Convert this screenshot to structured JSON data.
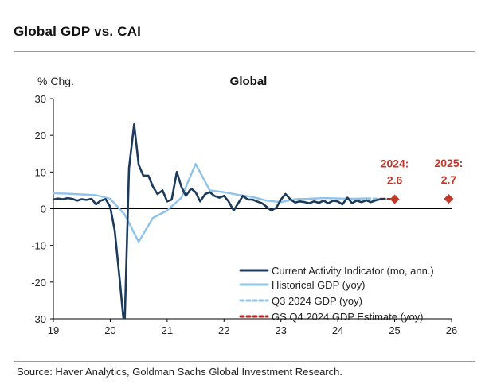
{
  "page": {
    "title": "Global GDP vs. CAI",
    "source": "Source: Haver Analytics, Goldman Sachs Global Investment Research."
  },
  "colors": {
    "cai": "#1b3a5c",
    "historical": "#8ec3ea",
    "q3": "#8ec3ea",
    "q4": "#b22222",
    "estimate": "#c0392b",
    "zero_line": "#000000"
  },
  "chart_data": {
    "type": "line",
    "title": "Global",
    "ylabel": "% Chg.",
    "ylim": [
      -30,
      30
    ],
    "yticks": [
      30,
      20,
      10,
      0,
      -10,
      -20,
      -30
    ],
    "xlim": [
      19,
      26
    ],
    "xticks": [
      "19",
      "20",
      "21",
      "22",
      "23",
      "24",
      "25",
      "26"
    ],
    "grid": false,
    "legend_position": "bottom-right",
    "series": [
      {
        "name": "Current Activity Indicator (mo, ann.)",
        "style": "solid-thick",
        "color": "#1b3a5c",
        "x": [
          19.0,
          19.08,
          19.17,
          19.25,
          19.33,
          19.42,
          19.5,
          19.58,
          19.67,
          19.75,
          19.83,
          19.92,
          20.0,
          20.08,
          20.17,
          20.25,
          20.33,
          20.42,
          20.5,
          20.58,
          20.67,
          20.75,
          20.83,
          20.92,
          21.0,
          21.08,
          21.17,
          21.25,
          21.33,
          21.42,
          21.5,
          21.58,
          21.67,
          21.75,
          21.83,
          21.92,
          22.0,
          22.08,
          22.17,
          22.25,
          22.33,
          22.42,
          22.5,
          22.58,
          22.67,
          22.75,
          22.83,
          22.92,
          23.0,
          23.08,
          23.17,
          23.25,
          23.33,
          23.42,
          23.5,
          23.58,
          23.67,
          23.75,
          23.83,
          23.92,
          24.0,
          24.08,
          24.17,
          24.25,
          24.33,
          24.42,
          24.5,
          24.58,
          24.67,
          24.75,
          24.83
        ],
        "y": [
          2.5,
          2.8,
          2.6,
          2.9,
          2.7,
          2.2,
          2.6,
          2.4,
          2.7,
          1.2,
          2.2,
          2.6,
          0.5,
          -6.0,
          -20.0,
          -33.0,
          11.0,
          23.0,
          12.0,
          9.0,
          9.0,
          6.0,
          4.0,
          5.0,
          2.0,
          2.5,
          10.0,
          6.0,
          3.5,
          5.5,
          4.5,
          2.0,
          4.0,
          4.5,
          3.5,
          3.0,
          3.5,
          2.0,
          -0.5,
          1.5,
          3.5,
          2.5,
          2.5,
          2.0,
          1.5,
          0.5,
          -0.5,
          0.3,
          2.5,
          4.0,
          2.5,
          1.7,
          2.0,
          1.8,
          1.5,
          2.0,
          1.6,
          2.2,
          1.5,
          2.2,
          2.0,
          1.2,
          3.0,
          1.5,
          2.2,
          1.8,
          2.3,
          1.8,
          2.3,
          2.6,
          2.7
        ]
      },
      {
        "name": "Historical GDP (yoy)",
        "style": "solid",
        "color": "#8ec3ea",
        "x": [
          19.0,
          19.25,
          19.5,
          19.75,
          20.0,
          20.25,
          20.5,
          20.75,
          21.0,
          21.25,
          21.5,
          21.75,
          22.0,
          22.25,
          22.5,
          22.75,
          23.0,
          23.25,
          23.5,
          23.75,
          24.0,
          24.25,
          24.5
        ],
        "y": [
          4.2,
          4.1,
          3.9,
          3.7,
          2.7,
          -1.5,
          -9.0,
          -2.5,
          -0.5,
          3.0,
          12.2,
          5.0,
          4.5,
          3.8,
          3.2,
          2.2,
          1.8,
          2.6,
          2.7,
          2.9,
          2.8,
          2.7,
          2.8
        ]
      },
      {
        "name": "Q3 2024 GDP (yoy)",
        "style": "dashed",
        "color": "#8ec3ea",
        "x": [
          24.5,
          24.75
        ],
        "y": [
          2.8,
          2.7
        ]
      },
      {
        "name": "GS Q4 2024 GDP Estimate (yoy)",
        "style": "dashed",
        "color": "#b22222",
        "x": [
          24.75,
          25.0
        ],
        "y": [
          2.7,
          2.6
        ]
      }
    ],
    "annotations": [
      {
        "label": "2024:",
        "value_label": "2.6",
        "x": 25.0,
        "y": 2.6
      },
      {
        "label": "2025:",
        "value_label": "2.7",
        "x": 25.95,
        "y": 2.7
      }
    ]
  }
}
